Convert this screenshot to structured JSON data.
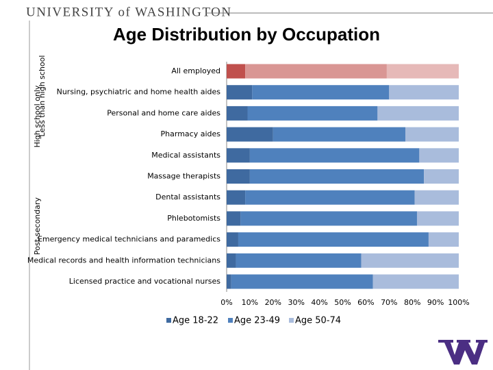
{
  "header": "UNIVERSITY of WASHINGTON",
  "chart_data": {
    "type": "stacked-bar-horizontal",
    "title": "Age Distribution by Occupation",
    "categories": [
      "All employed",
      "Nursing, psychiatric and home health aides",
      "Personal and home care aides",
      "Pharmacy aides",
      "Medical assistants",
      "Massage therapists",
      "Dental assistants",
      "Phlebotomists",
      "Emergency medical technicians and paramedics",
      "Medical records and health information technicians",
      "Licensed practice and vocational nurses"
    ],
    "group_labels": [
      "High school only",
      "Less than high school",
      "Post-secondary"
    ],
    "series": [
      {
        "name": "Age 18-22",
        "color": "#3f6aa0",
        "values": [
          8,
          11,
          9,
          20,
          10,
          10,
          8,
          6,
          5,
          4,
          2
        ]
      },
      {
        "name": "Age 23-49",
        "color": "#4f81bd",
        "values": [
          61,
          59,
          56,
          57,
          73,
          75,
          73,
          76,
          82,
          54,
          61
        ]
      },
      {
        "name": "Age 50-74",
        "color": "#a9bcdc",
        "values": [
          31,
          30,
          35,
          23,
          17,
          15,
          19,
          18,
          13,
          42,
          37
        ]
      }
    ],
    "highlight_row": 0,
    "highlight_colors": [
      "#c0504d",
      "#d99694",
      "#e6b9b8"
    ],
    "xlim": [
      0,
      100
    ],
    "xticks": [
      {
        "value": 0,
        "label": "0%"
      },
      {
        "value": 10,
        "label": "10%"
      },
      {
        "value": 20,
        "label": "20%"
      },
      {
        "value": 30,
        "label": "30%"
      },
      {
        "value": 40,
        "label": "40%"
      },
      {
        "value": 50,
        "label": "50%"
      },
      {
        "value": 60,
        "label": "60%"
      },
      {
        "value": 70,
        "label": "70%"
      },
      {
        "value": 80,
        "label": "80%"
      },
      {
        "value": 90,
        "label": "90%"
      },
      {
        "value": 100,
        "label": "100%"
      }
    ],
    "legend": "bottom"
  }
}
